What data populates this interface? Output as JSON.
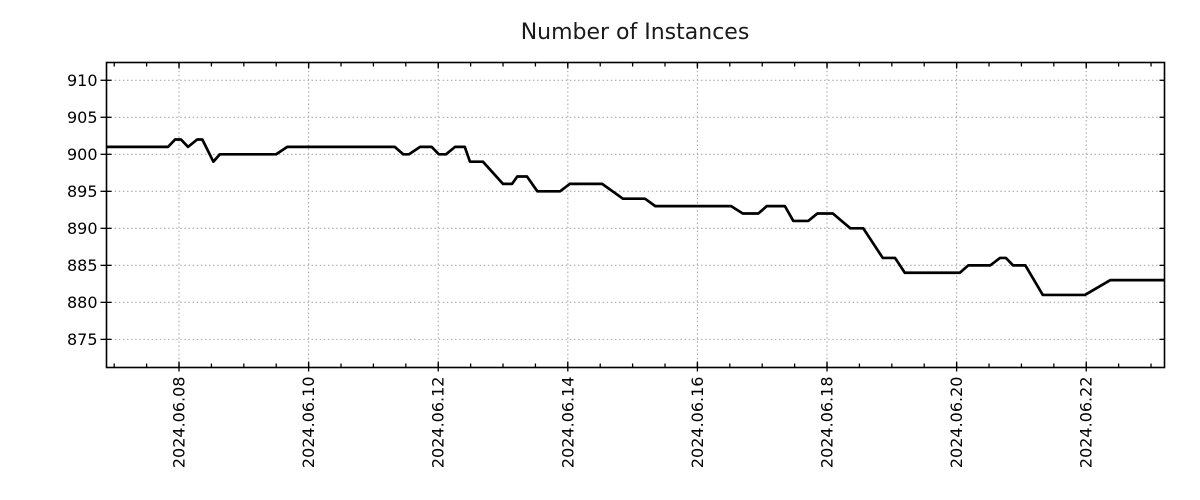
{
  "title": "Number of Instances",
  "chart_data": {
    "type": "line",
    "title": "Number of Instances",
    "legend": null,
    "grid": "dotted",
    "colors": {
      "line": "#000000",
      "grid": "#aaaaaa",
      "border": "#000000",
      "text": "#000000",
      "background": "#ffffff"
    },
    "x_axis": {
      "label": "",
      "unit": "days_since_2024.06.08",
      "lim": [
        -1.119,
        15.208
      ],
      "major_tick_days": [
        0,
        2,
        4,
        6,
        8,
        10,
        12,
        14
      ],
      "major_tick_labels": [
        "2024.06.08",
        "2024.06.10",
        "2024.06.12",
        "2024.06.14",
        "2024.06.16",
        "2024.06.18",
        "2024.06.20",
        "2024.06.22"
      ],
      "minor_tick_start": -1.0,
      "minor_tick_end": 15.0,
      "minor_tick_step": 0.5,
      "tick_label_rotation": 90
    },
    "y_axis": {
      "label": "",
      "lim": [
        871.2,
        912.4
      ],
      "ticks": [
        875,
        880,
        885,
        890,
        895,
        900,
        905,
        910
      ]
    },
    "series": [
      {
        "name": "instances",
        "points": [
          [
            -1.12,
            901
          ],
          [
            -0.17,
            901
          ],
          [
            -0.06,
            902
          ],
          [
            0.03,
            902
          ],
          [
            0.14,
            901
          ],
          [
            0.28,
            902
          ],
          [
            0.36,
            902
          ],
          [
            0.53,
            899
          ],
          [
            0.63,
            900
          ],
          [
            1.5,
            900
          ],
          [
            1.67,
            901
          ],
          [
            3.33,
            901
          ],
          [
            3.46,
            900
          ],
          [
            3.55,
            900
          ],
          [
            3.72,
            901
          ],
          [
            3.9,
            901
          ],
          [
            4.01,
            900
          ],
          [
            4.12,
            900
          ],
          [
            4.26,
            901
          ],
          [
            4.41,
            901
          ],
          [
            4.49,
            899
          ],
          [
            4.69,
            899
          ],
          [
            5.0,
            896
          ],
          [
            5.14,
            896
          ],
          [
            5.22,
            897
          ],
          [
            5.37,
            897
          ],
          [
            5.53,
            895
          ],
          [
            5.88,
            895
          ],
          [
            6.03,
            896
          ],
          [
            6.53,
            896
          ],
          [
            6.85,
            894
          ],
          [
            7.19,
            894
          ],
          [
            7.35,
            893
          ],
          [
            8.52,
            893
          ],
          [
            8.7,
            892
          ],
          [
            8.94,
            892
          ],
          [
            9.07,
            893
          ],
          [
            9.35,
            893
          ],
          [
            9.48,
            891
          ],
          [
            9.71,
            891
          ],
          [
            9.85,
            892
          ],
          [
            10.09,
            892
          ],
          [
            10.36,
            890
          ],
          [
            10.56,
            890
          ],
          [
            10.86,
            886
          ],
          [
            11.05,
            886
          ],
          [
            11.2,
            884
          ],
          [
            12.05,
            884
          ],
          [
            12.18,
            885
          ],
          [
            12.52,
            885
          ],
          [
            12.67,
            886
          ],
          [
            12.76,
            886
          ],
          [
            12.87,
            885
          ],
          [
            13.06,
            885
          ],
          [
            13.33,
            881
          ],
          [
            13.98,
            881
          ],
          [
            14.37,
            883
          ],
          [
            15.21,
            883
          ]
        ]
      }
    ]
  }
}
